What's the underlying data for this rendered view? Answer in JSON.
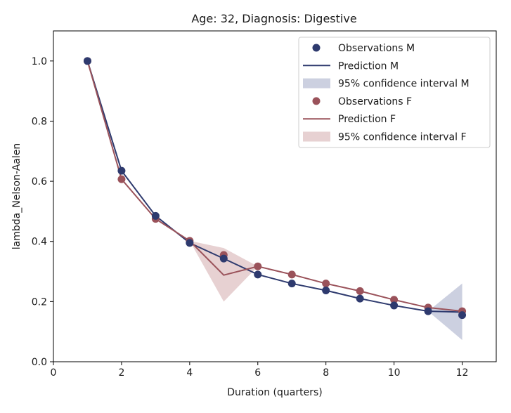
{
  "chart_data": {
    "type": "line",
    "title": "Age: 32, Diagnosis: Digestive",
    "xlabel": "Duration (quarters)",
    "ylabel": "lambda_Nelson-Aalen",
    "xlim": [
      0,
      13
    ],
    "ylim": [
      0,
      1.1
    ],
    "xticks": [
      "0",
      "2",
      "4",
      "6",
      "8",
      "10",
      "12"
    ],
    "yticks": [
      "0.0",
      "0.2",
      "0.4",
      "0.6",
      "0.8",
      "1.0"
    ],
    "legend_position": "top-right",
    "colors": {
      "M": "#2e3a6e",
      "F": "#9a525a",
      "ci_M": "#8e97ba",
      "ci_F": "#c9999c"
    },
    "series": [
      {
        "group": "M",
        "obs_x": [
          1,
          2,
          3,
          4,
          5,
          6,
          7,
          8,
          9,
          10,
          11,
          12
        ],
        "obs_y": [
          1.0,
          0.635,
          0.485,
          0.395,
          0.343,
          0.29,
          0.26,
          0.237,
          0.21,
          0.187,
          0.168,
          0.155
        ],
        "pred_x": [
          1,
          2,
          3,
          4,
          5,
          6,
          7,
          8,
          9,
          10,
          11,
          12
        ],
        "pred_y": [
          1.0,
          0.635,
          0.485,
          0.395,
          0.343,
          0.29,
          0.26,
          0.237,
          0.21,
          0.187,
          0.168,
          0.165
        ],
        "ci_x": [
          11,
          12
        ],
        "ci_lower": [
          0.168,
          0.072
        ],
        "ci_upper": [
          0.168,
          0.26
        ]
      },
      {
        "group": "F",
        "obs_x": [
          1,
          2,
          3,
          4,
          5,
          6,
          7,
          8,
          9,
          10,
          11,
          12
        ],
        "obs_y": [
          1.0,
          0.607,
          0.475,
          0.402,
          0.355,
          0.317,
          0.29,
          0.26,
          0.235,
          0.206,
          0.18,
          0.168
        ],
        "pred_x": [
          1,
          2,
          3,
          4,
          5,
          6,
          7,
          8,
          9,
          10,
          11,
          12
        ],
        "pred_y": [
          1.0,
          0.607,
          0.475,
          0.402,
          0.288,
          0.317,
          0.29,
          0.26,
          0.235,
          0.206,
          0.18,
          0.168
        ],
        "ci_x": [
          4,
          5,
          6
        ],
        "ci_lower": [
          0.402,
          0.2,
          0.317
        ],
        "ci_upper": [
          0.402,
          0.378,
          0.317
        ]
      }
    ],
    "legend": [
      {
        "kind": "marker",
        "group": "M",
        "label": "Observations M"
      },
      {
        "kind": "line",
        "group": "M",
        "label": "Prediction M"
      },
      {
        "kind": "band",
        "group": "M",
        "label": "95% confidence interval M"
      },
      {
        "kind": "marker",
        "group": "F",
        "label": "Observations F"
      },
      {
        "kind": "line",
        "group": "F",
        "label": "Prediction F"
      },
      {
        "kind": "band",
        "group": "F",
        "label": "95% confidence interval F"
      }
    ]
  }
}
